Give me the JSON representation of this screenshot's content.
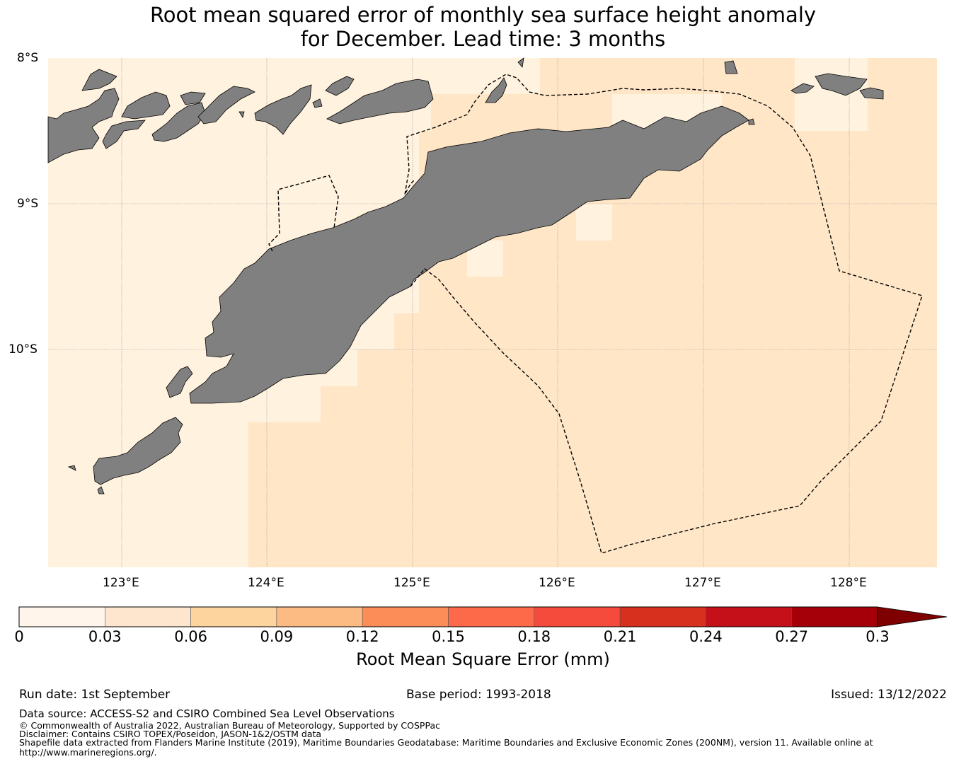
{
  "title_line1": "Root mean squared error of monthly sea surface height anomaly",
  "title_line2": "for December. Lead time: 3 months",
  "map": {
    "lat_labels": [
      "8°S",
      "9°S",
      "10°S"
    ],
    "lon_labels": [
      "123°E",
      "124°E",
      "125°E",
      "126°E",
      "127°E",
      "128°E"
    ],
    "lat_range": [
      -11.5,
      -8.0
    ],
    "lon_range": [
      122.5,
      128.6
    ],
    "gridlines": true,
    "colors": {
      "bin_0_003": "#fff2df",
      "bin_003_006": "#ffe6c7",
      "land": "#808080",
      "eez_line": "#000000"
    }
  },
  "colorbar": {
    "ticks": [
      "0",
      "0.03",
      "0.06",
      "0.09",
      "0.12",
      "0.15",
      "0.18",
      "0.21",
      "0.24",
      "0.27",
      "0.3"
    ],
    "colors": [
      "#fff5eb",
      "#fee6ce",
      "#fdd49e",
      "#fdbb84",
      "#fc8d59",
      "#fc6a4a",
      "#f54b3c",
      "#d7301f",
      "#c5101a",
      "#a50009"
    ],
    "extend_color": "#7f0000",
    "label": "Root Mean Square Error (mm)"
  },
  "footer": {
    "run_date": "Run date: 1st September",
    "base_period": "Base period: 1993-2018",
    "issued": "Issued: 13/12/2022",
    "data_source": "Data source: ACCESS-S2 and CSIRO Combined Sea Level Observations",
    "copyright": "© Commonwealth of Australia 2022, Australian Bureau of Meteorology, Supported by COSPPac",
    "disclaimer": "Disclaimer: Contains CSIRO TOPEX/Poseidon, JASON-1&2/OSTM data",
    "shapefile_line1": "Shapefile data extracted from Flanders Marine Institute (2019), Maritime Boundaries Geodatabase: Maritime Boundaries and Exclusive Economic Zones (200NM), version 11. Available online at",
    "shapefile_line2": "http://www.marineregions.org/."
  }
}
